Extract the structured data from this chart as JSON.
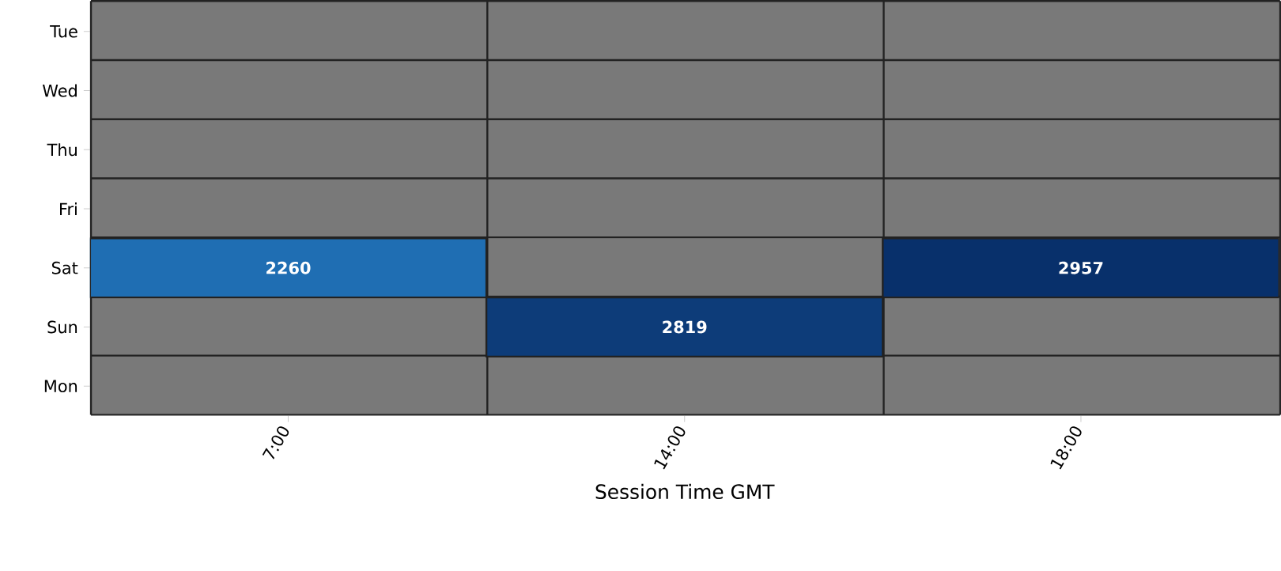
{
  "chart_data": {
    "type": "heatmap",
    "xlabel": "Session Time GMT",
    "categories": [
      "7:00",
      "14:00",
      "18:00"
    ],
    "y_categories": [
      "Tue",
      "Wed",
      "Thu",
      "Fri",
      "Sat",
      "Sun",
      "Mon"
    ],
    "cells": [
      [
        null,
        null,
        null
      ],
      [
        null,
        null,
        null
      ],
      [
        null,
        null,
        null
      ],
      [
        null,
        null,
        null
      ],
      [
        2260,
        null,
        2957
      ],
      [
        null,
        2819,
        null
      ],
      [
        null,
        null,
        null
      ]
    ],
    "data_labels": true
  }
}
